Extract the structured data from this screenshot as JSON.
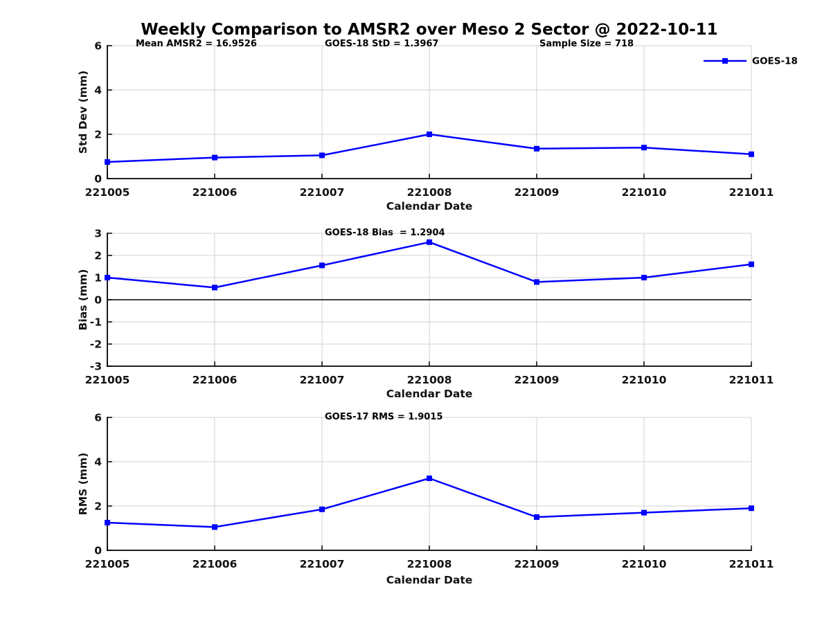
{
  "title": "Weekly Comparison to AMSR2 over Meso 2 Sector @ 2022-10-11",
  "legend": {
    "label": "GOES-18"
  },
  "colors": {
    "series": "#0000FF",
    "grid": "#d0d0d0",
    "axis": "#000000",
    "background": "#ffffff"
  },
  "chart_data": [
    {
      "type": "line",
      "categories": [
        "221005",
        "221006",
        "221007",
        "221008",
        "221009",
        "221010",
        "221011"
      ],
      "series": [
        {
          "name": "GOES-18",
          "values": [
            0.75,
            0.95,
            1.05,
            2.0,
            1.35,
            1.4,
            1.1
          ]
        }
      ],
      "xlabel": "Calendar Date",
      "ylabel": "Std Dev (mm)",
      "ylim": [
        0,
        6
      ],
      "yticks": [
        0,
        2,
        4,
        6
      ],
      "grid": true,
      "legend_position": "top-right",
      "marker": "square",
      "annotations": [
        "Mean AMSR2 = 16.9526",
        "GOES-18 StD = 1.3967",
        "Sample Size = 718"
      ]
    },
    {
      "type": "line",
      "categories": [
        "221005",
        "221006",
        "221007",
        "221008",
        "221009",
        "221010",
        "221011"
      ],
      "series": [
        {
          "name": "GOES-18",
          "values": [
            1.0,
            0.55,
            1.55,
            2.6,
            0.8,
            1.0,
            1.6
          ]
        }
      ],
      "xlabel": "Calendar Date",
      "ylabel": "Bias (mm)",
      "ylim": [
        -3,
        3
      ],
      "yticks": [
        -3,
        -2,
        -1,
        0,
        1,
        2,
        3
      ],
      "grid": true,
      "zero_line": true,
      "marker": "square",
      "annotations": [
        "GOES-18 Bias  = 1.2904"
      ]
    },
    {
      "type": "line",
      "categories": [
        "221005",
        "221006",
        "221007",
        "221008",
        "221009",
        "221010",
        "221011"
      ],
      "series": [
        {
          "name": "GOES-18",
          "values": [
            1.25,
            1.05,
            1.85,
            3.25,
            1.5,
            1.7,
            1.9
          ]
        }
      ],
      "xlabel": "Calendar Date",
      "ylabel": "RMS (mm)",
      "ylim": [
        0,
        6
      ],
      "yticks": [
        0,
        2,
        4,
        6
      ],
      "grid": true,
      "marker": "square",
      "annotations": [
        "GOES-17 RMS = 1.9015"
      ]
    }
  ]
}
